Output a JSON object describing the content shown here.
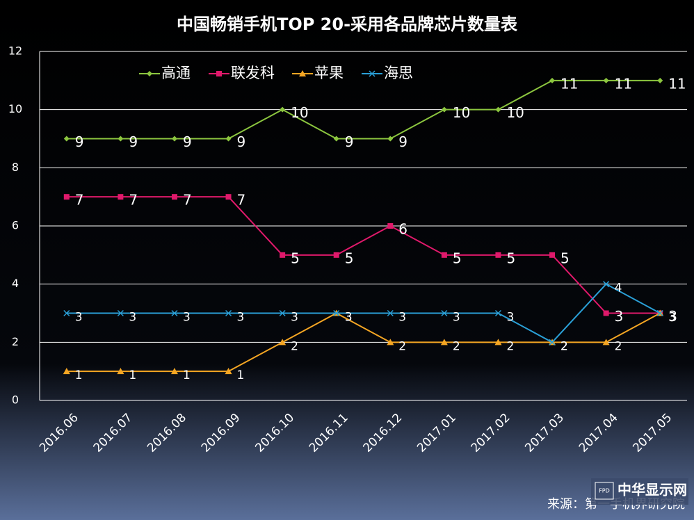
{
  "chart_data": {
    "type": "line",
    "title": "中国畅销手机TOP 20-采用各品牌芯片数量表",
    "categories": [
      "2016.06",
      "2016.07",
      "2016.08",
      "2016.09",
      "2016.10",
      "2016.11",
      "2016.12",
      "2017.01",
      "2017.02",
      "2017.03",
      "2017.04",
      "2017.05"
    ],
    "series": [
      {
        "name": "高通",
        "color": "#8cc63f",
        "marker": "diamond",
        "values": [
          9,
          9,
          9,
          9,
          10,
          9,
          9,
          10,
          10,
          11,
          11,
          11
        ]
      },
      {
        "name": "联发科",
        "color": "#e0196b",
        "marker": "square",
        "values": [
          7,
          7,
          7,
          7,
          5,
          5,
          6,
          5,
          5,
          5,
          3,
          3
        ]
      },
      {
        "name": "苹果",
        "color": "#f5a623",
        "marker": "triangle",
        "values": [
          1,
          1,
          1,
          1,
          2,
          3,
          2,
          2,
          2,
          2,
          2,
          3
        ]
      },
      {
        "name": "海思",
        "color": "#2a9fd6",
        "marker": "x",
        "values": [
          3,
          3,
          3,
          3,
          3,
          3,
          3,
          3,
          3,
          2,
          4,
          3
        ]
      }
    ],
    "ylim": [
      0,
      12
    ],
    "yticks": [
      0,
      2,
      4,
      6,
      8,
      10,
      12
    ],
    "grid": true,
    "legend": "top-left",
    "source": "来源：第一手机界研究院",
    "watermark": "中华显示网",
    "watermark_badge": "FPD"
  }
}
